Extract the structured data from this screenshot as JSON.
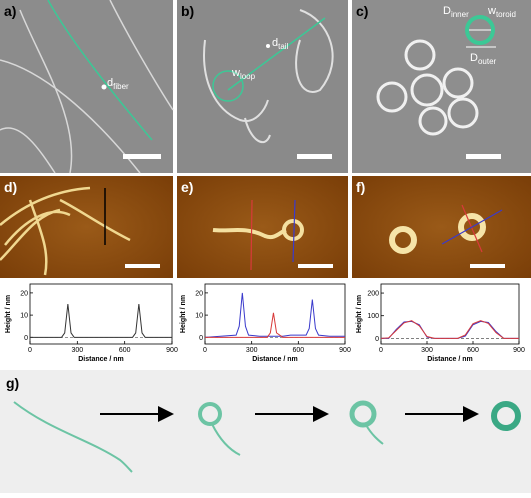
{
  "panels": {
    "a": "a)",
    "b": "b)",
    "c": "c)",
    "d": "d)",
    "e": "e)",
    "f": "f)",
    "g": "g)"
  },
  "annotations": {
    "d_fiber": {
      "main": "d",
      "sub": "fiber"
    },
    "d_tail": {
      "main": "d",
      "sub": "tail"
    },
    "w_loop": {
      "main": "w",
      "sub": "loop"
    },
    "D_inner": {
      "main": "D",
      "sub": "inner"
    },
    "w_toroid": {
      "main": "w",
      "sub": "toroid"
    },
    "D_outer": {
      "main": "D",
      "sub": "outer"
    }
  },
  "chart_data": [
    {
      "type": "line",
      "ylabel": "Height / nm",
      "xlabel": "Distance / nm",
      "xlim": [
        0,
        900
      ],
      "xticks": [
        0,
        300,
        600,
        900
      ],
      "ylim": [
        -3,
        24
      ],
      "yticks": [
        0,
        10,
        20
      ],
      "reference_line": 0,
      "x": [
        0,
        100,
        200,
        220,
        240,
        260,
        280,
        400,
        600,
        650,
        670,
        690,
        710,
        730,
        800,
        900
      ],
      "series": [
        {
          "color": "#333333",
          "values": [
            0,
            0,
            0,
            2,
            15,
            2,
            0,
            0,
            0,
            0,
            2,
            15,
            2,
            0,
            0,
            0
          ]
        }
      ]
    },
    {
      "type": "line",
      "ylabel": "Height / nm",
      "xlabel": "Distance / nm",
      "xlim": [
        0,
        900
      ],
      "xticks": [
        0,
        300,
        600,
        900
      ],
      "ylim": [
        -3,
        24
      ],
      "yticks": [
        0,
        10,
        20
      ],
      "reference_line": 0,
      "x": [
        0,
        100,
        200,
        220,
        240,
        260,
        280,
        350,
        400,
        420,
        440,
        460,
        500,
        550,
        600,
        650,
        670,
        690,
        710,
        730,
        800,
        900
      ],
      "series": [
        {
          "color": "#3a3acc",
          "values": [
            0,
            0.5,
            1,
            5,
            20,
            5,
            1,
            0.5,
            0.5,
            0.5,
            0.5,
            0.5,
            0.5,
            1,
            1,
            1,
            4,
            17,
            4,
            1,
            0.5,
            0.5
          ]
        },
        {
          "color": "#d83a3a",
          "values": [
            0,
            0,
            0,
            0,
            0,
            0,
            0,
            0,
            0,
            2,
            11,
            2,
            0,
            0,
            0,
            0,
            0,
            0,
            0,
            0,
            0,
            0
          ]
        }
      ]
    },
    {
      "type": "line",
      "ylabel": "Height / nm",
      "xlabel": "Distance / nm",
      "xlim": [
        0,
        900
      ],
      "xticks": [
        0,
        300,
        600,
        900
      ],
      "ylim": [
        -25,
        240
      ],
      "yticks": [
        0,
        100,
        200
      ],
      "reference_line": 0,
      "x": [
        0,
        50,
        100,
        150,
        200,
        250,
        300,
        350,
        450,
        500,
        550,
        600,
        650,
        700,
        750,
        800,
        900
      ],
      "series": [
        {
          "color": "#3a3acc",
          "values": [
            0,
            0,
            40,
            72,
            75,
            60,
            5,
            0,
            0,
            0,
            10,
            60,
            75,
            70,
            30,
            0,
            0
          ]
        },
        {
          "color": "#d83a3a",
          "values": [
            0,
            2,
            35,
            68,
            78,
            55,
            8,
            0,
            0,
            0,
            15,
            65,
            78,
            66,
            25,
            0,
            0
          ]
        }
      ]
    }
  ]
}
